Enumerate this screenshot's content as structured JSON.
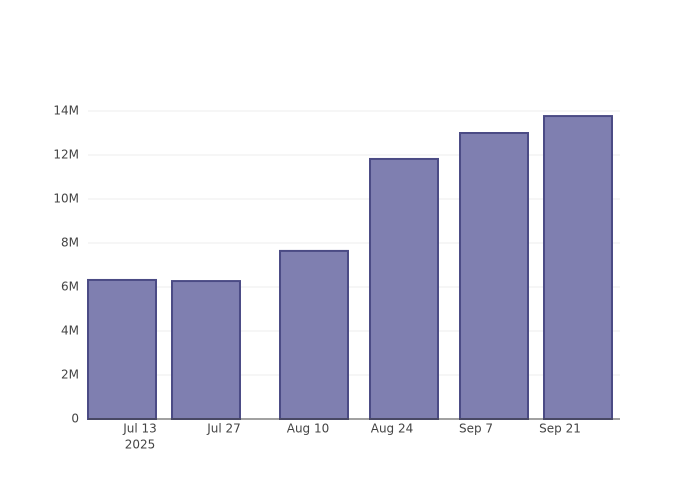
{
  "chart_data": {
    "type": "bar",
    "x": [
      "2025-07-10",
      "2025-07-24",
      "2025-08-11",
      "2025-08-26",
      "2025-09-10",
      "2025-09-24"
    ],
    "values": [
      6320000,
      6270000,
      7640000,
      11820000,
      13000000,
      13770000
    ],
    "color": "#7f7fb0",
    "edge_color": "#4b4b85",
    "xlim": [
      "2025-07-04T08:00:00Z",
      "2025-10-01T00:00:00Z"
    ],
    "xticks": [
      {
        "value": "2025-07-13",
        "label": "Jul 13"
      },
      {
        "value": "2025-07-27",
        "label": "Jul 27"
      },
      {
        "value": "2025-08-10",
        "label": "Aug 10"
      },
      {
        "value": "2025-08-24",
        "label": "Aug 24"
      },
      {
        "value": "2025-09-07",
        "label": "Sep 7"
      },
      {
        "value": "2025-09-21",
        "label": "Sep 21"
      }
    ],
    "x_year_label": "2025",
    "ylim": [
      0,
      14500000
    ],
    "yticks": [
      0,
      {
        "value": 2000000,
        "label": "2M"
      },
      {
        "value": 4000000,
        "label": "4M"
      },
      {
        "value": 6000000,
        "label": "6M"
      },
      {
        "value": 8000000,
        "label": "8M"
      },
      {
        "value": 10000000,
        "label": "10M"
      },
      {
        "value": 12000000,
        "label": "12M"
      },
      {
        "value": 14000000,
        "label": "14M"
      }
    ],
    "grid": true
  }
}
